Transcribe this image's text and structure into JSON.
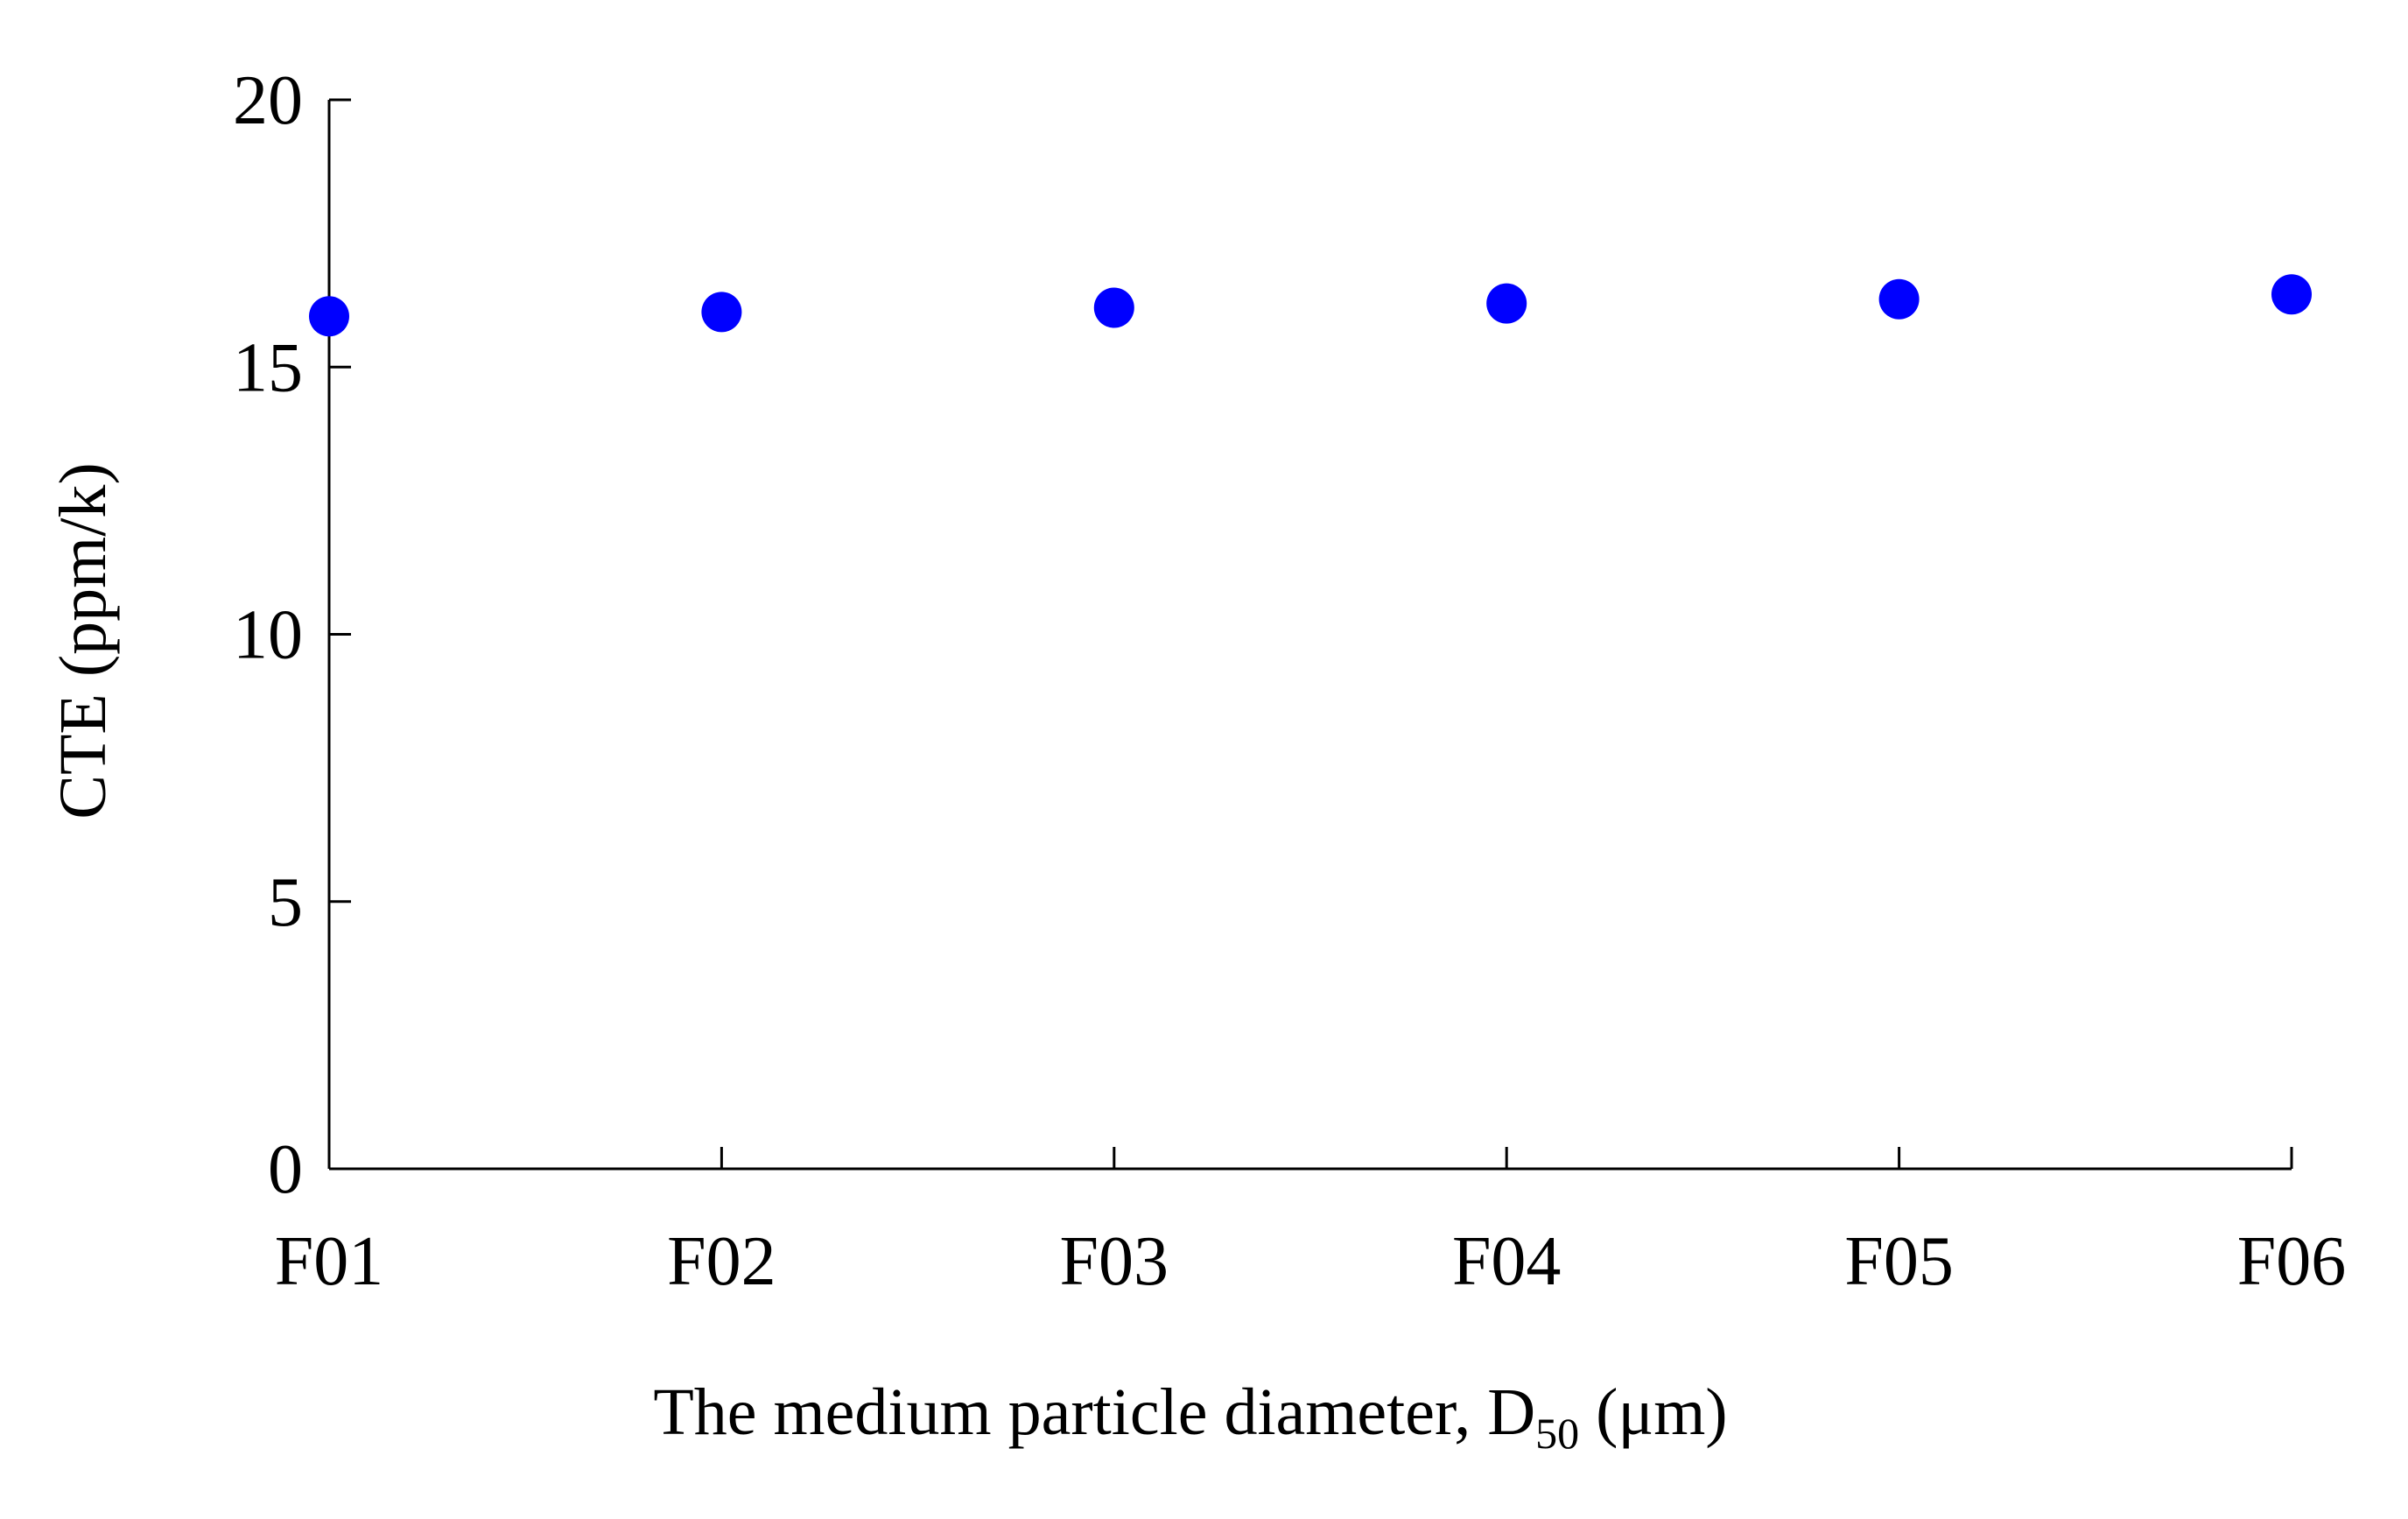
{
  "chart_data": {
    "type": "scatter",
    "title": "",
    "categories": [
      "F01",
      "F02",
      "F03",
      "F04",
      "F05",
      "F06"
    ],
    "series": [
      {
        "values": [
          15.95,
          16.03,
          16.11,
          16.19,
          16.27,
          16.36
        ]
      }
    ],
    "xlabel": {
      "main": "The medium particle diameter, D",
      "subscript": "50",
      "unit": " (μm)"
    },
    "ylabel": "CTE (ppm/k)",
    "ylim": [
      0,
      20
    ],
    "yticks": [
      "0",
      "5",
      "10",
      "15",
      "20"
    ],
    "grid": false,
    "legend": "none",
    "colors": {
      "marker": "#0000ff",
      "axis": "#000000"
    }
  }
}
